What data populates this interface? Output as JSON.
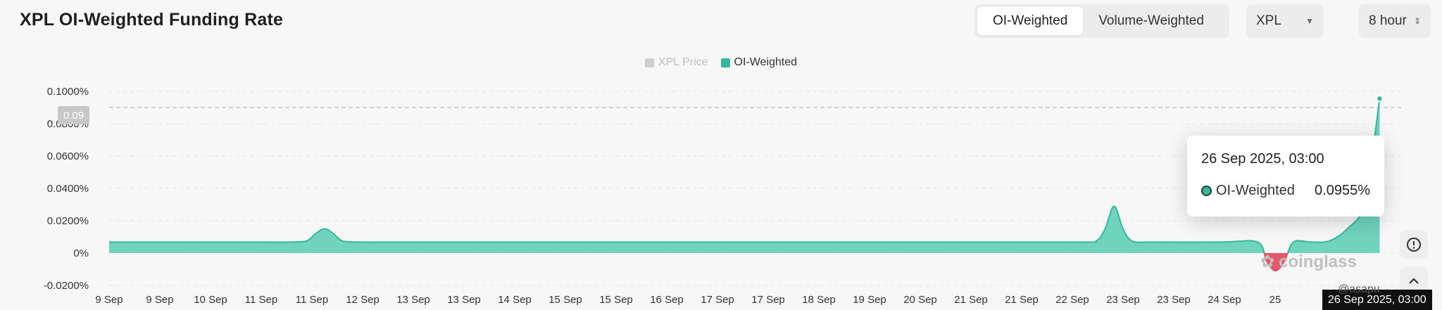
{
  "header": {
    "title": "XPL OI-Weighted Funding Rate",
    "tabs": [
      {
        "label": "OI-Weighted",
        "active": true
      },
      {
        "label": "Volume-Weighted",
        "active": false
      }
    ],
    "symbol_select": "XPL",
    "interval_select": "8 hour"
  },
  "legend": {
    "items": [
      {
        "label": "XPL Price",
        "color": "#cfcfcf",
        "muted": true
      },
      {
        "label": "OI-Weighted",
        "color": "#36b89d",
        "muted": false
      }
    ]
  },
  "tooltip": {
    "title": "26 Sep 2025, 03:00",
    "series": "OI-Weighted",
    "value": "0.0955%"
  },
  "crosshair": {
    "x_label": "26 Sep 2025, 03:00",
    "y_label": "0.09"
  },
  "watermark": "coinglass",
  "credit": "@asapu",
  "icons": {
    "alert": "alert-clock-icon",
    "scroll_top": "chevron-up-icon",
    "caret": "caret-down-icon"
  },
  "colors": {
    "positive": "#36b89d",
    "positive_fill": "#6fd3bd",
    "negative": "#e0566a",
    "negative_fill": "#e35a6c"
  },
  "chart_data": {
    "type": "area",
    "title": "XPL OI-Weighted Funding Rate",
    "ylim": [
      -0.02,
      0.1
    ],
    "yticks": [
      "0.1000%",
      "0.0800%",
      "0.0600%",
      "0.0400%",
      "0.0200%",
      "0%",
      "-0.0200%"
    ],
    "ytick_values": [
      0.1,
      0.08,
      0.06,
      0.04,
      0.02,
      0,
      -0.02
    ],
    "xtick_labels": [
      "9 Sep",
      "9 Sep",
      "10 Sep",
      "11 Sep",
      "11 Sep",
      "12 Sep",
      "13 Sep",
      "13 Sep",
      "14 Sep",
      "15 Sep",
      "15 Sep",
      "16 Sep",
      "17 Sep",
      "17 Sep",
      "18 Sep",
      "19 Sep",
      "20 Sep",
      "21 Sep",
      "21 Sep",
      "22 Sep",
      "23 Sep",
      "23 Sep",
      "24 Sep",
      "25"
    ],
    "series": [
      {
        "name": "OI-Weighted",
        "x": [
          0,
          4,
          8,
          10,
          11,
          11.5,
          12,
          12.5,
          13,
          14,
          16,
          20,
          30,
          45,
          54,
          55,
          55.5,
          56,
          56.5,
          57,
          58,
          62,
          64,
          64.5,
          65,
          65.5,
          66,
          67,
          68,
          69,
          70,
          70.5,
          70.8
        ],
        "y": [
          0.0068,
          0.0068,
          0.0068,
          0.0068,
          0.0075,
          0.012,
          0.015,
          0.012,
          0.0075,
          0.0068,
          0.0068,
          0.0068,
          0.0068,
          0.0068,
          0.0068,
          0.0075,
          0.015,
          0.029,
          0.015,
          0.0075,
          0.0068,
          0.0068,
          0.0068,
          -0.005,
          -0.011,
          -0.005,
          0.0068,
          0.0068,
          0.0075,
          0.015,
          0.03,
          0.07,
          0.0955
        ]
      }
    ],
    "grid": true,
    "legend": "top-center"
  }
}
